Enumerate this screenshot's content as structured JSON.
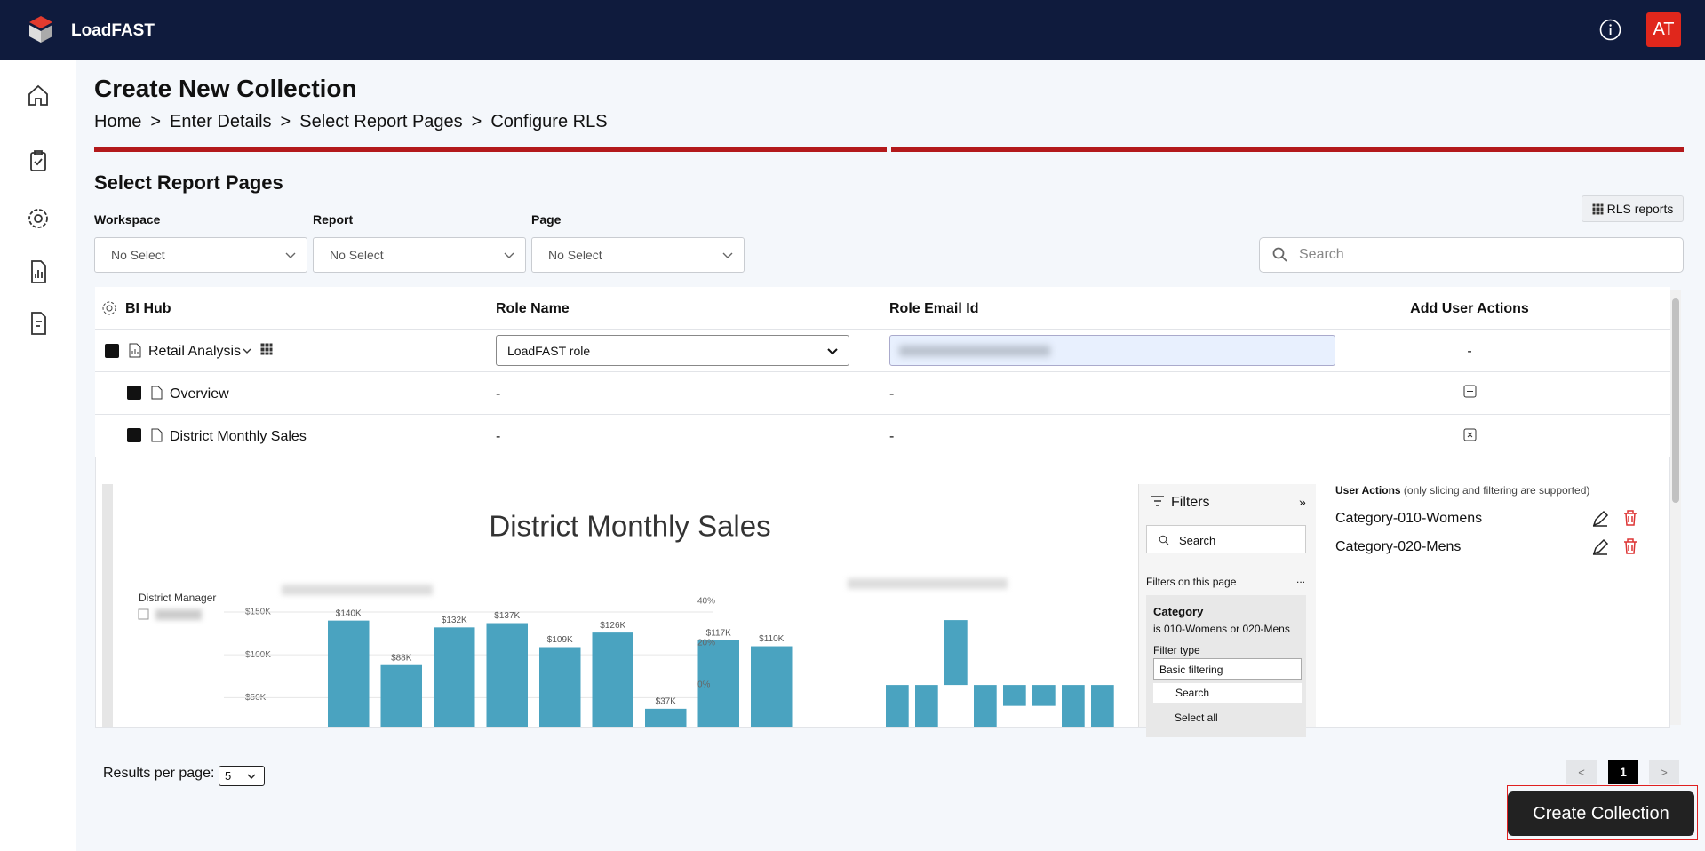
{
  "app": {
    "name": "LoadFAST",
    "avatar": "AT"
  },
  "page": {
    "title": "Create New Collection",
    "breadcrumb": [
      "Home",
      "Enter Details",
      "Select Report Pages",
      "Configure RLS"
    ],
    "breadcrumb_separator": ">",
    "section_title": "Select Report Pages"
  },
  "filters": {
    "workspace": {
      "label": "Workspace",
      "value": "No Select"
    },
    "report": {
      "label": "Report",
      "value": "No Select"
    },
    "page": {
      "label": "Page",
      "value": "No Select"
    },
    "rls_button": "RLS reports",
    "search_placeholder": "Search"
  },
  "table": {
    "headers": [
      "BI Hub",
      "Role Name",
      "Role Email Id",
      "Add User Actions"
    ],
    "rows": [
      {
        "name": "Retail Analysis",
        "role": "LoadFAST role",
        "actions": "-"
      },
      {
        "name": "Overview",
        "role": "-",
        "email": "-"
      },
      {
        "name": "District Monthly Sales",
        "role": "-",
        "email": "-"
      }
    ]
  },
  "report": {
    "title": "District Monthly Sales",
    "slicer_label": "District Manager",
    "chart1": {
      "type": "bar",
      "values": [
        140000,
        88000,
        132000,
        137000,
        109000,
        126000,
        37000,
        117000,
        110000
      ],
      "value_labels": [
        "$140K",
        "$88K",
        "$132K",
        "$137K",
        "$109K",
        "$126K",
        "$37K",
        "$117K",
        "$110K"
      ],
      "color": "#4aa3c0",
      "ylim": [
        0,
        150000
      ],
      "yticks": [
        {
          "value": 50000,
          "label": "$50K"
        },
        {
          "value": 100000,
          "label": "$100K"
        },
        {
          "value": 150000,
          "label": "$150K"
        }
      ],
      "grid": true
    },
    "chart2": {
      "type": "bar",
      "values": [
        -25,
        -25,
        31,
        -25,
        -10,
        -10,
        -25,
        -25
      ],
      "color": "#4aa3c0",
      "ylim": [
        -20,
        40
      ],
      "yticks": [
        {
          "value": 0,
          "label": "0%"
        },
        {
          "value": 20,
          "label": "20%"
        },
        {
          "value": 40,
          "label": "40%"
        }
      ]
    }
  },
  "filters_pane": {
    "title": "Filters",
    "search": "Search",
    "on_page": "Filters on this page",
    "more": "...",
    "card_title": "Category",
    "card_summary": "is 010-Womens or 020-Mens",
    "filter_type_label": "Filter type",
    "filter_type": "Basic filtering",
    "card_search": "Search",
    "select_all": "Select all"
  },
  "user_actions": {
    "title": "User Actions",
    "note": "(only slicing and filtering are supported)",
    "items": [
      "Category-010-Womens",
      "Category-020-Mens"
    ]
  },
  "footer": {
    "results_label": "Results per page:",
    "page_size": 5,
    "prev": "<",
    "page": 1,
    "next": ">",
    "create_button": "Create Collection"
  }
}
